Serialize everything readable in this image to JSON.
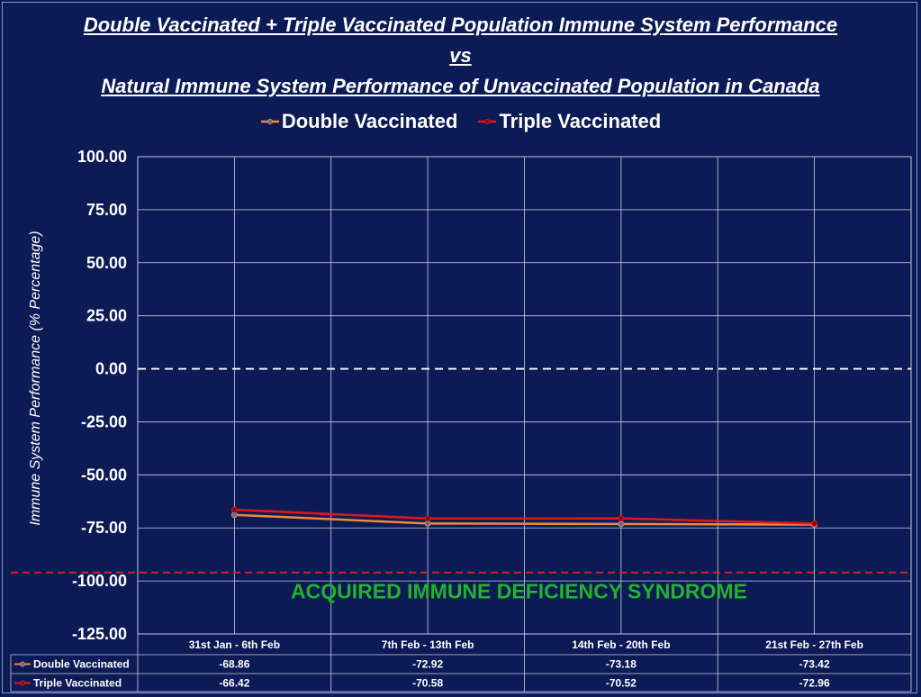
{
  "titles": {
    "line1": "Double Vaccinated + Triple Vaccinated Population Immune System Performance",
    "line2": "vs",
    "line3": "Natural Immune System Performance of Unvaccinated Population in Canada"
  },
  "colors": {
    "background": "#0c1a55",
    "double": "#f28a36",
    "triple": "#e3161b",
    "grid": "#c9cfe6",
    "zero_line": "#ffffff",
    "aids_line": "#d62024",
    "aids_text": "#22b32a"
  },
  "chart_data": {
    "type": "line",
    "title": "Double Vaccinated + Triple Vaccinated Population Immune System Performance vs Natural Immune System Performance of Unvaccinated Population in Canada",
    "ylabel": "Immune System Performance (% Percentage)",
    "xlabel": "",
    "categories": [
      "31st Jan - 6th Feb",
      "7th Feb - 13th Feb",
      "14th Feb - 20th Feb",
      "21st Feb - 27th Feb"
    ],
    "series": [
      {
        "name": "Double Vaccinated",
        "values": [
          -68.86,
          -72.92,
          -73.18,
          -73.42
        ],
        "display": [
          "-68.86",
          "-72.92",
          "-73.18",
          "-73.42"
        ]
      },
      {
        "name": "Triple Vaccinated",
        "values": [
          -66.42,
          -70.58,
          -70.52,
          -72.96
        ],
        "display": [
          "-66.42",
          "-70.58",
          "-70.52",
          "-72.96"
        ]
      }
    ],
    "ylim": [
      -125,
      100
    ],
    "yticks": [
      100,
      75,
      50,
      25,
      0,
      -25,
      -50,
      -75,
      -100,
      -125
    ],
    "ytick_labels": [
      "100.00",
      "75.00",
      "50.00",
      "25.00",
      "0.00",
      "-25.00",
      "-50.00",
      "-75.00",
      "-100.00",
      "-125.00"
    ],
    "reference_lines": [
      {
        "value": 0,
        "style": "dashed"
      },
      {
        "value": -96,
        "style": "dashed",
        "label": "ACQUIRED IMMUNE DEFICIENCY SYNDROME"
      }
    ],
    "grid": true,
    "legend": "top",
    "data_table": true
  }
}
